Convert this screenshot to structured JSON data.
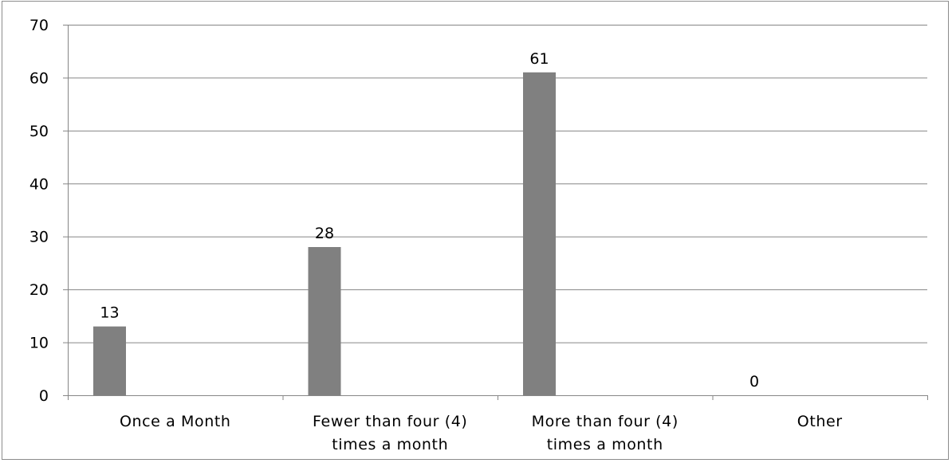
{
  "chart_data": {
    "type": "bar",
    "categories": [
      [
        "Once a Month"
      ],
      [
        "Fewer than four (4)",
        "times a month"
      ],
      [
        "More than four (4)",
        "times a month"
      ],
      [
        "Other"
      ]
    ],
    "values": [
      13,
      28,
      61,
      0
    ],
    "data_labels": [
      "13",
      "28",
      "61",
      "0"
    ],
    "title": "",
    "xlabel": "",
    "ylabel": "",
    "ylim": [
      0,
      70
    ],
    "yticks": [
      0,
      10,
      20,
      30,
      40,
      50,
      60,
      70
    ],
    "grid": true,
    "legend": "none",
    "bar_color": "#808080",
    "gridline_color": "#868686"
  }
}
